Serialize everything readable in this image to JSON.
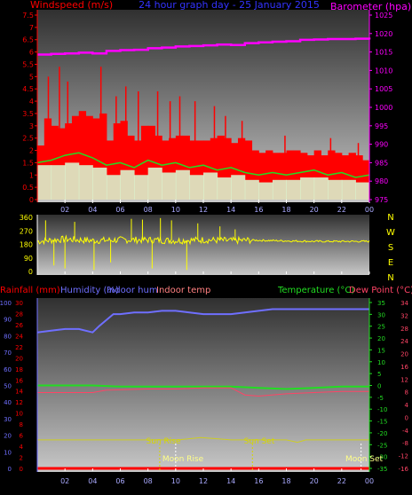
{
  "title": "24 hour graph day - 25 January 2015",
  "colors": {
    "wind_gust": "#ff0000",
    "wind_avg": "#22dd22",
    "wind_min": "#d8ffd8",
    "pressure": "#ff00ff",
    "wind_dir": "#ffff00",
    "rain": "#ff0000",
    "humidity": "#6f6fff",
    "indoor_hum": "#6f6fff",
    "indoor_temp": "#ff8080",
    "temperature": "#22dd22",
    "dew_point": "#ff4466",
    "sun": "#d6d600",
    "moon": "#ffffff"
  },
  "time_ticks": [
    "02",
    "04",
    "06",
    "08",
    "10",
    "12",
    "14",
    "16",
    "18",
    "20",
    "22",
    "00"
  ],
  "chart_data": [
    {
      "type": "area",
      "name": "wind-pressure",
      "left_label": "Windspeed (m/s)",
      "right_label": "Barometer (hpa)",
      "left_ticks": [
        "0",
        "0.5",
        "1",
        "1.5",
        "2",
        "2.5",
        "3",
        "3.5",
        "4",
        "4.5",
        "5",
        "5.5",
        "6",
        "6.5",
        "7",
        "7.5"
      ],
      "right_ticks": [
        "975",
        "980",
        "985",
        "990",
        "995",
        "1000",
        "1005",
        "1010",
        "1015",
        "1020",
        "1025"
      ],
      "ylim_left": [
        0,
        7.5
      ],
      "ylim_right": [
        975,
        1025
      ],
      "wind_gust_blocks": [
        {
          "x": 0.0,
          "v": 2.2
        },
        {
          "x": 0.5,
          "v": 3.3
        },
        {
          "x": 1.0,
          "v": 3.0
        },
        {
          "x": 1.5,
          "v": 2.9
        },
        {
          "x": 2.0,
          "v": 3.1
        },
        {
          "x": 2.5,
          "v": 3.4
        },
        {
          "x": 3.0,
          "v": 3.6
        },
        {
          "x": 3.5,
          "v": 3.4
        },
        {
          "x": 4.0,
          "v": 3.3
        },
        {
          "x": 4.5,
          "v": 3.5
        },
        {
          "x": 5.0,
          "v": 2.4
        },
        {
          "x": 5.5,
          "v": 3.1
        },
        {
          "x": 6.0,
          "v": 3.2
        },
        {
          "x": 6.5,
          "v": 2.6
        },
        {
          "x": 7.0,
          "v": 2.4
        },
        {
          "x": 7.5,
          "v": 3.0
        },
        {
          "x": 8.0,
          "v": 3.0
        },
        {
          "x": 8.5,
          "v": 2.6
        },
        {
          "x": 9.0,
          "v": 2.4
        },
        {
          "x": 9.5,
          "v": 2.5
        },
        {
          "x": 10.0,
          "v": 2.6
        },
        {
          "x": 10.5,
          "v": 2.6
        },
        {
          "x": 11.0,
          "v": 2.4
        },
        {
          "x": 11.5,
          "v": 2.4
        },
        {
          "x": 12.0,
          "v": 2.4
        },
        {
          "x": 12.5,
          "v": 2.5
        },
        {
          "x": 13.0,
          "v": 2.6
        },
        {
          "x": 13.5,
          "v": 2.5
        },
        {
          "x": 14.0,
          "v": 2.3
        },
        {
          "x": 14.5,
          "v": 2.5
        },
        {
          "x": 15.0,
          "v": 2.4
        },
        {
          "x": 15.5,
          "v": 2.0
        },
        {
          "x": 16.0,
          "v": 1.9
        },
        {
          "x": 16.5,
          "v": 2.0
        },
        {
          "x": 17.0,
          "v": 1.9
        },
        {
          "x": 17.5,
          "v": 1.9
        },
        {
          "x": 18.0,
          "v": 2.0
        },
        {
          "x": 18.5,
          "v": 2.0
        },
        {
          "x": 19.0,
          "v": 1.9
        },
        {
          "x": 19.5,
          "v": 1.8
        },
        {
          "x": 20.0,
          "v": 2.0
        },
        {
          "x": 20.5,
          "v": 1.8
        },
        {
          "x": 21.0,
          "v": 2.0
        },
        {
          "x": 21.5,
          "v": 1.9
        },
        {
          "x": 22.0,
          "v": 1.8
        },
        {
          "x": 22.5,
          "v": 1.9
        },
        {
          "x": 23.0,
          "v": 1.8
        },
        {
          "x": 23.5,
          "v": 1.6
        }
      ],
      "wind_gust_spikes": [
        {
          "x": 0.8,
          "v": 5.0
        },
        {
          "x": 1.6,
          "v": 5.4
        },
        {
          "x": 2.2,
          "v": 4.8
        },
        {
          "x": 4.6,
          "v": 5.4
        },
        {
          "x": 5.7,
          "v": 4.2
        },
        {
          "x": 6.4,
          "v": 4.6
        },
        {
          "x": 7.3,
          "v": 4.4
        },
        {
          "x": 8.7,
          "v": 4.4
        },
        {
          "x": 9.6,
          "v": 4.0
        },
        {
          "x": 10.3,
          "v": 4.2
        },
        {
          "x": 11.4,
          "v": 4.0
        },
        {
          "x": 12.8,
          "v": 3.8
        },
        {
          "x": 13.6,
          "v": 3.4
        },
        {
          "x": 14.8,
          "v": 3.2
        },
        {
          "x": 17.9,
          "v": 2.6
        },
        {
          "x": 21.2,
          "v": 2.5
        },
        {
          "x": 23.2,
          "v": 2.3
        }
      ],
      "wind_avg": [
        {
          "x": 0.0,
          "v": 1.5
        },
        {
          "x": 1.0,
          "v": 1.6
        },
        {
          "x": 2.0,
          "v": 1.8
        },
        {
          "x": 3.0,
          "v": 1.9
        },
        {
          "x": 4.0,
          "v": 1.7
        },
        {
          "x": 5.0,
          "v": 1.4
        },
        {
          "x": 6.0,
          "v": 1.5
        },
        {
          "x": 7.0,
          "v": 1.3
        },
        {
          "x": 8.0,
          "v": 1.6
        },
        {
          "x": 9.0,
          "v": 1.4
        },
        {
          "x": 10.0,
          "v": 1.5
        },
        {
          "x": 11.0,
          "v": 1.3
        },
        {
          "x": 12.0,
          "v": 1.4
        },
        {
          "x": 13.0,
          "v": 1.2
        },
        {
          "x": 14.0,
          "v": 1.3
        },
        {
          "x": 15.0,
          "v": 1.1
        },
        {
          "x": 16.0,
          "v": 1.0
        },
        {
          "x": 17.0,
          "v": 1.1
        },
        {
          "x": 18.0,
          "v": 1.0
        },
        {
          "x": 19.0,
          "v": 1.1
        },
        {
          "x": 20.0,
          "v": 1.2
        },
        {
          "x": 21.0,
          "v": 1.0
        },
        {
          "x": 22.0,
          "v": 1.1
        },
        {
          "x": 23.0,
          "v": 0.9
        },
        {
          "x": 24.0,
          "v": 1.0
        }
      ],
      "wind_min_blocks": [
        {
          "x": 0.0,
          "v": 1.4
        },
        {
          "x": 1.0,
          "v": 1.4
        },
        {
          "x": 2.0,
          "v": 1.5
        },
        {
          "x": 3.0,
          "v": 1.4
        },
        {
          "x": 4.0,
          "v": 1.3
        },
        {
          "x": 5.0,
          "v": 1.0
        },
        {
          "x": 6.0,
          "v": 1.2
        },
        {
          "x": 7.0,
          "v": 1.0
        },
        {
          "x": 8.0,
          "v": 1.3
        },
        {
          "x": 9.0,
          "v": 1.1
        },
        {
          "x": 10.0,
          "v": 1.2
        },
        {
          "x": 11.0,
          "v": 1.0
        },
        {
          "x": 12.0,
          "v": 1.1
        },
        {
          "x": 13.0,
          "v": 0.9
        },
        {
          "x": 14.0,
          "v": 1.0
        },
        {
          "x": 15.0,
          "v": 0.8
        },
        {
          "x": 16.0,
          "v": 0.7
        },
        {
          "x": 17.0,
          "v": 0.8
        },
        {
          "x": 18.0,
          "v": 0.8
        },
        {
          "x": 19.0,
          "v": 0.9
        },
        {
          "x": 20.0,
          "v": 0.9
        },
        {
          "x": 21.0,
          "v": 0.8
        },
        {
          "x": 22.0,
          "v": 0.8
        },
        {
          "x": 23.0,
          "v": 0.7
        }
      ],
      "pressure": [
        {
          "x": 0.0,
          "p": 1014.3
        },
        {
          "x": 1.0,
          "p": 1014.5
        },
        {
          "x": 2.0,
          "p": 1014.6
        },
        {
          "x": 3.0,
          "p": 1014.8
        },
        {
          "x": 4.0,
          "p": 1014.6
        },
        {
          "x": 5.0,
          "p": 1015.3
        },
        {
          "x": 6.0,
          "p": 1015.5
        },
        {
          "x": 7.0,
          "p": 1015.6
        },
        {
          "x": 8.0,
          "p": 1016.0
        },
        {
          "x": 9.0,
          "p": 1016.2
        },
        {
          "x": 10.0,
          "p": 1016.5
        },
        {
          "x": 11.0,
          "p": 1016.6
        },
        {
          "x": 12.0,
          "p": 1016.8
        },
        {
          "x": 13.0,
          "p": 1017.0
        },
        {
          "x": 14.0,
          "p": 1016.9
        },
        {
          "x": 15.0,
          "p": 1017.4
        },
        {
          "x": 16.0,
          "p": 1017.6
        },
        {
          "x": 17.0,
          "p": 1017.8
        },
        {
          "x": 18.0,
          "p": 1017.9
        },
        {
          "x": 19.0,
          "p": 1018.3
        },
        {
          "x": 20.0,
          "p": 1018.4
        },
        {
          "x": 21.0,
          "p": 1018.5
        },
        {
          "x": 22.0,
          "p": 1018.5
        },
        {
          "x": 23.0,
          "p": 1018.6
        },
        {
          "x": 24.0,
          "p": 1018.4
        }
      ]
    },
    {
      "type": "scatter",
      "name": "wind-direction",
      "left_ticks": [
        "0",
        "90",
        "180",
        "270",
        "360"
      ],
      "right_labels": [
        "N",
        "W",
        "S",
        "E",
        "N"
      ],
      "ylim": [
        0,
        360
      ],
      "band_center": [
        {
          "x": 0.0,
          "d": 200
        },
        {
          "x": 2.0,
          "d": 215
        },
        {
          "x": 4.0,
          "d": 205
        },
        {
          "x": 6.0,
          "d": 210
        },
        {
          "x": 8.0,
          "d": 210
        },
        {
          "x": 10.0,
          "d": 205
        },
        {
          "x": 12.0,
          "d": 210
        },
        {
          "x": 14.0,
          "d": 205
        },
        {
          "x": 15.5,
          "d": 208
        },
        {
          "x": 17.0,
          "d": 205
        },
        {
          "x": 20.0,
          "d": 200
        },
        {
          "x": 24.0,
          "d": 200
        }
      ],
      "spikes": [
        {
          "x": 0.6,
          "d": 340
        },
        {
          "x": 1.2,
          "d": 40
        },
        {
          "x": 2.0,
          "d": 20
        },
        {
          "x": 2.7,
          "d": 330
        },
        {
          "x": 4.1,
          "d": 10
        },
        {
          "x": 5.3,
          "d": 60
        },
        {
          "x": 6.8,
          "d": 350
        },
        {
          "x": 7.6,
          "d": 345
        },
        {
          "x": 8.3,
          "d": 20
        },
        {
          "x": 8.9,
          "d": 355
        },
        {
          "x": 9.7,
          "d": 340
        },
        {
          "x": 10.8,
          "d": 10
        },
        {
          "x": 11.6,
          "d": 320
        },
        {
          "x": 13.2,
          "d": 300
        },
        {
          "x": 14.3,
          "d": 280
        }
      ]
    },
    {
      "type": "line",
      "name": "rain-humidity-temperature",
      "left_labels": [
        "Rainfall (mm)",
        "Humidity (%)",
        "Indoor hum",
        "Indoor temp"
      ],
      "right_labels": [
        "Temperature (°C)",
        "Dew Point (°C)"
      ],
      "rain_ticks": [
        "0",
        "2",
        "4",
        "6",
        "8",
        "10",
        "12",
        "14",
        "16",
        "18",
        "20",
        "22",
        "24",
        "26",
        "28",
        "30"
      ],
      "hum_ticks": [
        "0",
        "10",
        "20",
        "30",
        "40",
        "50",
        "60",
        "70",
        "80",
        "90",
        "100"
      ],
      "temp_ticks": [
        "-35",
        "-30",
        "-25",
        "-20",
        "-15",
        "-10",
        "-5",
        "0",
        "5",
        "10",
        "15",
        "20",
        "25",
        "30",
        "35"
      ],
      "indoor_temp_ticks": [
        "-16",
        "-12",
        "-8",
        "-4",
        "0",
        "4",
        "8",
        "12",
        "16",
        "20",
        "24",
        "28",
        "32",
        "34"
      ],
      "ylim_rain": [
        0,
        30
      ],
      "ylim_hum": [
        0,
        100
      ],
      "ylim_temp": [
        -35,
        35
      ],
      "humidity": [
        {
          "x": 0.0,
          "h": 82
        },
        {
          "x": 1.0,
          "h": 83
        },
        {
          "x": 2.0,
          "h": 84
        },
        {
          "x": 3.0,
          "h": 84
        },
        {
          "x": 4.0,
          "h": 82
        },
        {
          "x": 4.5,
          "h": 86
        },
        {
          "x": 5.5,
          "h": 93
        },
        {
          "x": 6.0,
          "h": 93
        },
        {
          "x": 7.0,
          "h": 94
        },
        {
          "x": 8.0,
          "h": 94
        },
        {
          "x": 9.0,
          "h": 95
        },
        {
          "x": 10.0,
          "h": 95
        },
        {
          "x": 11.0,
          "h": 94
        },
        {
          "x": 12.0,
          "h": 93
        },
        {
          "x": 13.0,
          "h": 93
        },
        {
          "x": 14.0,
          "h": 93
        },
        {
          "x": 15.0,
          "h": 94
        },
        {
          "x": 16.0,
          "h": 95
        },
        {
          "x": 17.0,
          "h": 96
        },
        {
          "x": 18.0,
          "h": 96
        },
        {
          "x": 20.0,
          "h": 96
        },
        {
          "x": 22.0,
          "h": 96
        },
        {
          "x": 24.0,
          "h": 96
        }
      ],
      "temperature": [
        {
          "x": 0.0,
          "t": 0.0
        },
        {
          "x": 4.0,
          "t": 0.0
        },
        {
          "x": 6.0,
          "t": -0.5
        },
        {
          "x": 8.0,
          "t": -0.5
        },
        {
          "x": 10.0,
          "t": -0.5
        },
        {
          "x": 12.0,
          "t": -0.5
        },
        {
          "x": 14.0,
          "t": -0.5
        },
        {
          "x": 16.0,
          "t": -1.0
        },
        {
          "x": 18.0,
          "t": -1.5
        },
        {
          "x": 20.0,
          "t": -1.0
        },
        {
          "x": 22.0,
          "t": -0.5
        },
        {
          "x": 24.0,
          "t": -0.5
        }
      ],
      "dew_point": [
        {
          "x": 0.0,
          "t": -3.0
        },
        {
          "x": 2.0,
          "t": -3.0
        },
        {
          "x": 4.0,
          "t": -3.0
        },
        {
          "x": 5.0,
          "t": -2.0
        },
        {
          "x": 8.0,
          "t": -1.5
        },
        {
          "x": 10.0,
          "t": -1.5
        },
        {
          "x": 12.0,
          "t": -1.0
        },
        {
          "x": 14.0,
          "t": -1.0
        },
        {
          "x": 15.0,
          "t": -4.0
        },
        {
          "x": 16.0,
          "t": -4.5
        },
        {
          "x": 18.0,
          "t": -3.5
        },
        {
          "x": 20.0,
          "t": -3.0
        },
        {
          "x": 22.0,
          "t": -2.5
        },
        {
          "x": 24.0,
          "t": -2.5
        }
      ],
      "sun_elevation": [
        {
          "x": 0.0,
          "e": -23
        },
        {
          "x": 8.8,
          "e": -23
        },
        {
          "x": 10.2,
          "e": -23
        },
        {
          "x": 11.8,
          "e": -22
        },
        {
          "x": 13.0,
          "e": -22.5
        },
        {
          "x": 14.0,
          "e": -23
        },
        {
          "x": 18.0,
          "e": -23
        },
        {
          "x": 18.8,
          "e": -24
        },
        {
          "x": 19.4,
          "e": -23
        },
        {
          "x": 24.0,
          "e": -23
        }
      ],
      "rain": [
        {
          "x": 0.0,
          "r": 0.0
        },
        {
          "x": 24.0,
          "r": 0.0
        }
      ],
      "sun_rise_label": "Sun Rise",
      "sun_set_label": "Sun Set",
      "moon_rise_label": "Moon Rise",
      "moon_set_label": "Moon Set",
      "sun_rise_x": 8.85,
      "sun_set_x": 15.55,
      "moon_rise_x": 10.0,
      "moon_set_x": 23.4
    }
  ]
}
